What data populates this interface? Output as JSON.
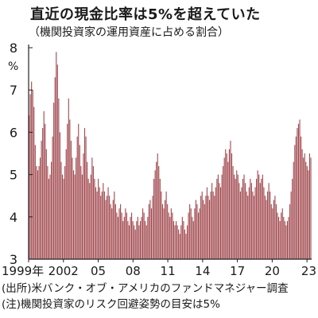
{
  "header": {
    "title": "直近の現金比率は5%を超えていた",
    "subtitle": "（機関投資家の運用資産に占める割合）"
  },
  "notes": {
    "source": "(出所)米バンク・オブ・アメリカのファンドマネジャー調査",
    "note": "(注)機関投資家のリスク回避姿勢の目安は5%"
  },
  "colors": {
    "bar": "#a24a50",
    "axis": "#222222",
    "text": "#1a1a1a"
  },
  "chart_data": {
    "type": "bar",
    "title": "直近の現金比率は5%を超えていた",
    "ylabel": "%",
    "ylim": [
      3,
      8
    ],
    "y_ticks": [
      3,
      4,
      5,
      6,
      7,
      8
    ],
    "x_ticks": [
      {
        "label": "1999年",
        "x": 1999
      },
      {
        "label": "2002",
        "x": 2002
      },
      {
        "label": "05",
        "x": 2005
      },
      {
        "label": "08",
        "x": 2008
      },
      {
        "label": "11",
        "x": 2011
      },
      {
        "label": "14",
        "x": 2014
      },
      {
        "label": "17",
        "x": 2017
      },
      {
        "label": "20",
        "x": 2020
      },
      {
        "label": "23",
        "x": 2023
      }
    ],
    "x_range": [
      1999.0,
      2023.4
    ],
    "grid": false,
    "legend": "none",
    "series_annual_mean": [
      {
        "year": 1999,
        "value": 5.6
      },
      {
        "year": 2000,
        "value": 5.7
      },
      {
        "year": 2001,
        "value": 5.6
      },
      {
        "year": 2002,
        "value": 5.0
      },
      {
        "year": 2003,
        "value": 4.6
      },
      {
        "year": 2004,
        "value": 4.4
      },
      {
        "year": 2005,
        "value": 4.1
      },
      {
        "year": 2006,
        "value": 3.9
      },
      {
        "year": 2007,
        "value": 4.0
      },
      {
        "year": 2008,
        "value": 4.5
      },
      {
        "year": 2009,
        "value": 4.2
      },
      {
        "year": 2010,
        "value": 3.8
      },
      {
        "year": 2011,
        "value": 4.1
      },
      {
        "year": 2012,
        "value": 4.3
      },
      {
        "year": 2013,
        "value": 4.4
      },
      {
        "year": 2014,
        "value": 4.7
      },
      {
        "year": 2015,
        "value": 4.9
      },
      {
        "year": 2016,
        "value": 5.3
      },
      {
        "year": 2017,
        "value": 4.9
      },
      {
        "year": 2018,
        "value": 4.7
      },
      {
        "year": 2019,
        "value": 4.9
      },
      {
        "year": 2020,
        "value": 4.4
      },
      {
        "year": 2021,
        "value": 4.0
      },
      {
        "year": 2022,
        "value": 5.8
      },
      {
        "year": 2023,
        "value": 5.2
      }
    ],
    "values": [
      6.4,
      6.9,
      7.2,
      7.0,
      6.6,
      5.7,
      5.2,
      5.1,
      5.2,
      5.4,
      5.8,
      6.1,
      6.5,
      6.2,
      5.6,
      5.2,
      4.9,
      5.0,
      5.3,
      5.9,
      6.7,
      7.3,
      7.9,
      7.6,
      6.8,
      6.0,
      5.3,
      5.0,
      4.9,
      5.2,
      5.6,
      6.2,
      6.8,
      6.3,
      5.8,
      5.4,
      5.1,
      5.0,
      5.4,
      5.9,
      6.2,
      5.7,
      5.2,
      5.0,
      5.5,
      6.1,
      5.9,
      5.3,
      4.9,
      4.8,
      5.0,
      5.4,
      5.2,
      4.9,
      4.7,
      4.6,
      4.9,
      4.7,
      4.5,
      4.6,
      4.8,
      4.6,
      4.4,
      4.5,
      4.7,
      4.5,
      4.3,
      4.2,
      4.4,
      4.6,
      4.3,
      4.1,
      4.0,
      4.2,
      4.3,
      4.1,
      3.9,
      4.0,
      4.2,
      4.1,
      3.9,
      3.8,
      4.0,
      4.1,
      3.9,
      3.8,
      3.7,
      3.9,
      4.0,
      3.8,
      3.9,
      4.0,
      4.2,
      4.1,
      3.9,
      3.8,
      4.0,
      4.3,
      4.4,
      4.2,
      4.5,
      4.9,
      5.1,
      5.3,
      5.5,
      5.2,
      4.9,
      4.6,
      4.3,
      4.2,
      4.4,
      4.6,
      4.3,
      4.1,
      4.0,
      4.2,
      4.1,
      3.9,
      3.8,
      3.9,
      3.8,
      3.7,
      3.6,
      3.8,
      4.0,
      3.9,
      3.7,
      3.6,
      3.8,
      4.1,
      4.3,
      4.2,
      4.0,
      3.9,
      4.2,
      4.4,
      4.3,
      4.1,
      4.2,
      4.5,
      4.6,
      4.4,
      4.3,
      4.5,
      4.7,
      4.5,
      4.4,
      4.6,
      4.8,
      4.6,
      4.5,
      4.7,
      4.9,
      5.0,
      4.8,
      4.7,
      5.0,
      5.2,
      5.4,
      5.6,
      5.5,
      5.3,
      5.6,
      5.8,
      5.5,
      5.2,
      5.0,
      4.9,
      5.1,
      5.0,
      4.8,
      4.6,
      4.7,
      4.9,
      5.0,
      4.8,
      4.6,
      4.5,
      4.7,
      4.9,
      4.8,
      4.6,
      4.5,
      4.7,
      4.9,
      5.1,
      5.0,
      4.8,
      4.9,
      5.0,
      4.7,
      4.5,
      4.4,
      4.6,
      4.8,
      4.6,
      4.3,
      4.2,
      4.4,
      4.5,
      4.3,
      4.1,
      4.0,
      3.9,
      4.1,
      4.2,
      4.0,
      3.9,
      3.8,
      3.9,
      4.0,
      4.3,
      4.6,
      4.9,
      5.3,
      5.7,
      5.9,
      6.1,
      6.2,
      6.3,
      5.9,
      5.6,
      5.4,
      5.5,
      5.3,
      5.2,
      5.1,
      5.5,
      5.4
    ]
  }
}
